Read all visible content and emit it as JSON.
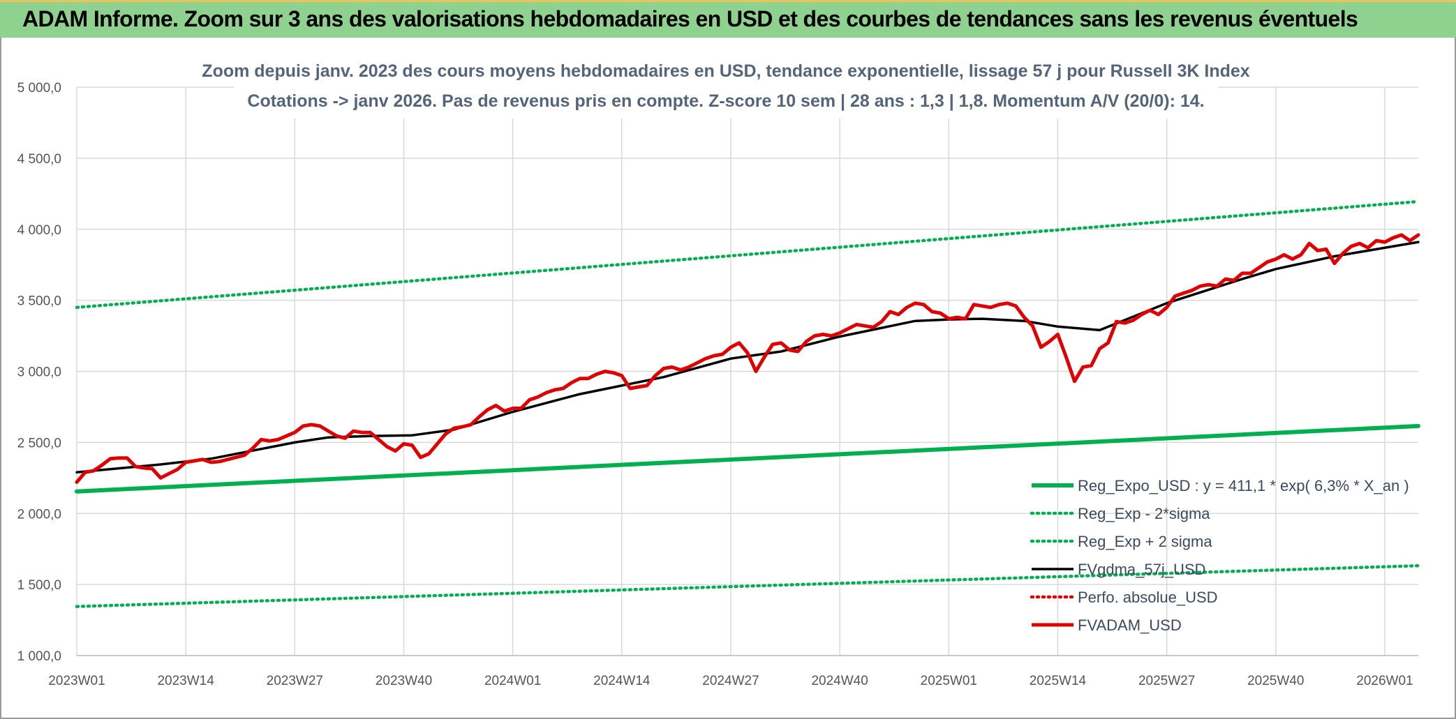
{
  "banner": {
    "title": "ADAM Informe. Zoom sur 3 ans des valorisations hebdomadaires en USD et des courbes de tendances sans les revenus éventuels"
  },
  "colors": {
    "banner_bg": "#8fd18f",
    "trend_green": "#00b050",
    "fvadam_red": "#e00000",
    "fvgdma_black": "#000000",
    "perfo_red": "#e00000",
    "grid": "#d9d9d9"
  },
  "chart_data": {
    "type": "line",
    "title": [
      "Zoom depuis janv. 2023 des cours moyens hebdomadaires en USD, tendance exponentielle, lissage 57 j pour Russell 3K Index",
      "Cotations -> janv 2026. Pas de revenus pris en compte. Z-score 10 sem | 28 ans : 1,3 | 1,8. Momentum A/V (20/0): 14."
    ],
    "ylim": [
      1000,
      5000
    ],
    "y_ticks": [
      "1 000,0",
      "1 500,0",
      "2 000,0",
      "2 500,0",
      "3 000,0",
      "3 500,0",
      "4 000,0",
      "4 500,0",
      "5 000,0"
    ],
    "y_tick_values": [
      1000,
      1500,
      2000,
      2500,
      3000,
      3500,
      4000,
      4500,
      5000
    ],
    "x_ticks": [
      "2023W01",
      "2023W14",
      "2023W27",
      "2023W40",
      "2024W01",
      "2024W14",
      "2024W27",
      "2024W40",
      "2025W01",
      "2025W14",
      "2025W27",
      "2025W40",
      "2026W01"
    ],
    "x_tick_weeks": [
      0,
      13,
      26,
      39,
      52,
      65,
      78,
      91,
      104,
      117,
      130,
      143,
      156
    ],
    "x_range_weeks": [
      0,
      160
    ],
    "grid": true,
    "legend_position": "bottom-right",
    "series": [
      {
        "name": "Reg_Expo_USD : y = 411,1 * exp( 6,3% *  X_an )",
        "style": "solid-thick",
        "color": "#00b050",
        "x": [
          0,
          160
        ],
        "values": [
          2155,
          2615
        ]
      },
      {
        "name": "Reg_Exp - 2*sigma",
        "style": "dotted",
        "color": "#00b050",
        "x": [
          0,
          160
        ],
        "values": [
          1345,
          1632
        ]
      },
      {
        "name": "Reg_Exp + 2 sigma",
        "style": "dotted",
        "color": "#00b050",
        "x": [
          0,
          160
        ],
        "values": [
          3450,
          4195
        ]
      },
      {
        "name": "FVgdma_57j_USD",
        "style": "solid",
        "color": "#000000",
        "x": [
          0,
          10,
          16,
          26,
          30,
          35,
          40,
          45,
          52,
          60,
          70,
          78,
          84,
          91,
          100,
          104,
          108,
          113,
          117,
          122,
          130,
          139,
          143,
          150,
          160
        ],
        "values": [
          2290,
          2345,
          2385,
          2500,
          2535,
          2545,
          2550,
          2590,
          2715,
          2840,
          2960,
          3090,
          3140,
          3245,
          3355,
          3365,
          3370,
          3355,
          3315,
          3290,
          3480,
          3650,
          3720,
          3810,
          3910
        ]
      },
      {
        "name": "Perfo. absolue_USD",
        "style": "dotted",
        "color": "#e00000",
        "x": [],
        "values": []
      },
      {
        "name": "FVADAM_USD",
        "style": "solid-thick",
        "color": "#e00000",
        "x": [
          0,
          1,
          2,
          3,
          4,
          5,
          6,
          7,
          8,
          9,
          10,
          11,
          12,
          13,
          14,
          15,
          16,
          17,
          18,
          19,
          20,
          21,
          22,
          23,
          24,
          25,
          26,
          27,
          28,
          29,
          30,
          31,
          32,
          33,
          34,
          35,
          36,
          37,
          38,
          39,
          40,
          41,
          42,
          43,
          44,
          45,
          46,
          47,
          48,
          49,
          50,
          51,
          52,
          53,
          54,
          55,
          56,
          57,
          58,
          59,
          60,
          61,
          62,
          63,
          64,
          65,
          66,
          67,
          68,
          69,
          70,
          71,
          72,
          73,
          74,
          75,
          76,
          77,
          78,
          79,
          80,
          81,
          82,
          83,
          84,
          85,
          86,
          87,
          88,
          89,
          90,
          91,
          92,
          93,
          94,
          95,
          96,
          97,
          98,
          99,
          100,
          101,
          102,
          103,
          104,
          105,
          106,
          107,
          108,
          109,
          110,
          111,
          112,
          113,
          114,
          115,
          116,
          117,
          118,
          119,
          120,
          121,
          122,
          123,
          124,
          125,
          126,
          127,
          128,
          129,
          130,
          131,
          132,
          133,
          134,
          135,
          136,
          137,
          138,
          139,
          140,
          141,
          142,
          143,
          144,
          145,
          146,
          147,
          148,
          149,
          150,
          151,
          152,
          153,
          154,
          155,
          156,
          157,
          158,
          159,
          160
        ],
        "values": [
          2220,
          2290,
          2300,
          2340,
          2385,
          2390,
          2390,
          2330,
          2320,
          2315,
          2250,
          2280,
          2310,
          2360,
          2370,
          2380,
          2360,
          2365,
          2380,
          2395,
          2410,
          2460,
          2520,
          2510,
          2520,
          2545,
          2570,
          2615,
          2625,
          2615,
          2580,
          2545,
          2530,
          2580,
          2570,
          2570,
          2520,
          2470,
          2440,
          2490,
          2480,
          2395,
          2420,
          2490,
          2560,
          2600,
          2610,
          2625,
          2680,
          2730,
          2760,
          2720,
          2740,
          2740,
          2800,
          2820,
          2850,
          2870,
          2880,
          2920,
          2950,
          2950,
          2980,
          3000,
          2990,
          2970,
          2880,
          2890,
          2900,
          2970,
          3020,
          3030,
          3010,
          3030,
          3060,
          3090,
          3110,
          3120,
          3170,
          3200,
          3130,
          3000,
          3100,
          3190,
          3200,
          3150,
          3140,
          3210,
          3250,
          3260,
          3250,
          3270,
          3300,
          3330,
          3320,
          3310,
          3350,
          3420,
          3400,
          3450,
          3480,
          3470,
          3420,
          3410,
          3370,
          3380,
          3370,
          3470,
          3460,
          3450,
          3470,
          3480,
          3460,
          3380,
          3320,
          3170,
          3210,
          3260,
          3100,
          2930,
          3030,
          3040,
          3160,
          3200,
          3350,
          3340,
          3360,
          3400,
          3430,
          3400,
          3450,
          3530,
          3550,
          3570,
          3600,
          3610,
          3600,
          3650,
          3640,
          3690,
          3690,
          3730,
          3770,
          3790,
          3820,
          3790,
          3820,
          3900,
          3850,
          3860,
          3760,
          3830,
          3880,
          3900,
          3870,
          3920,
          3910,
          3940,
          3960,
          3920,
          3960
        ]
      }
    ]
  }
}
